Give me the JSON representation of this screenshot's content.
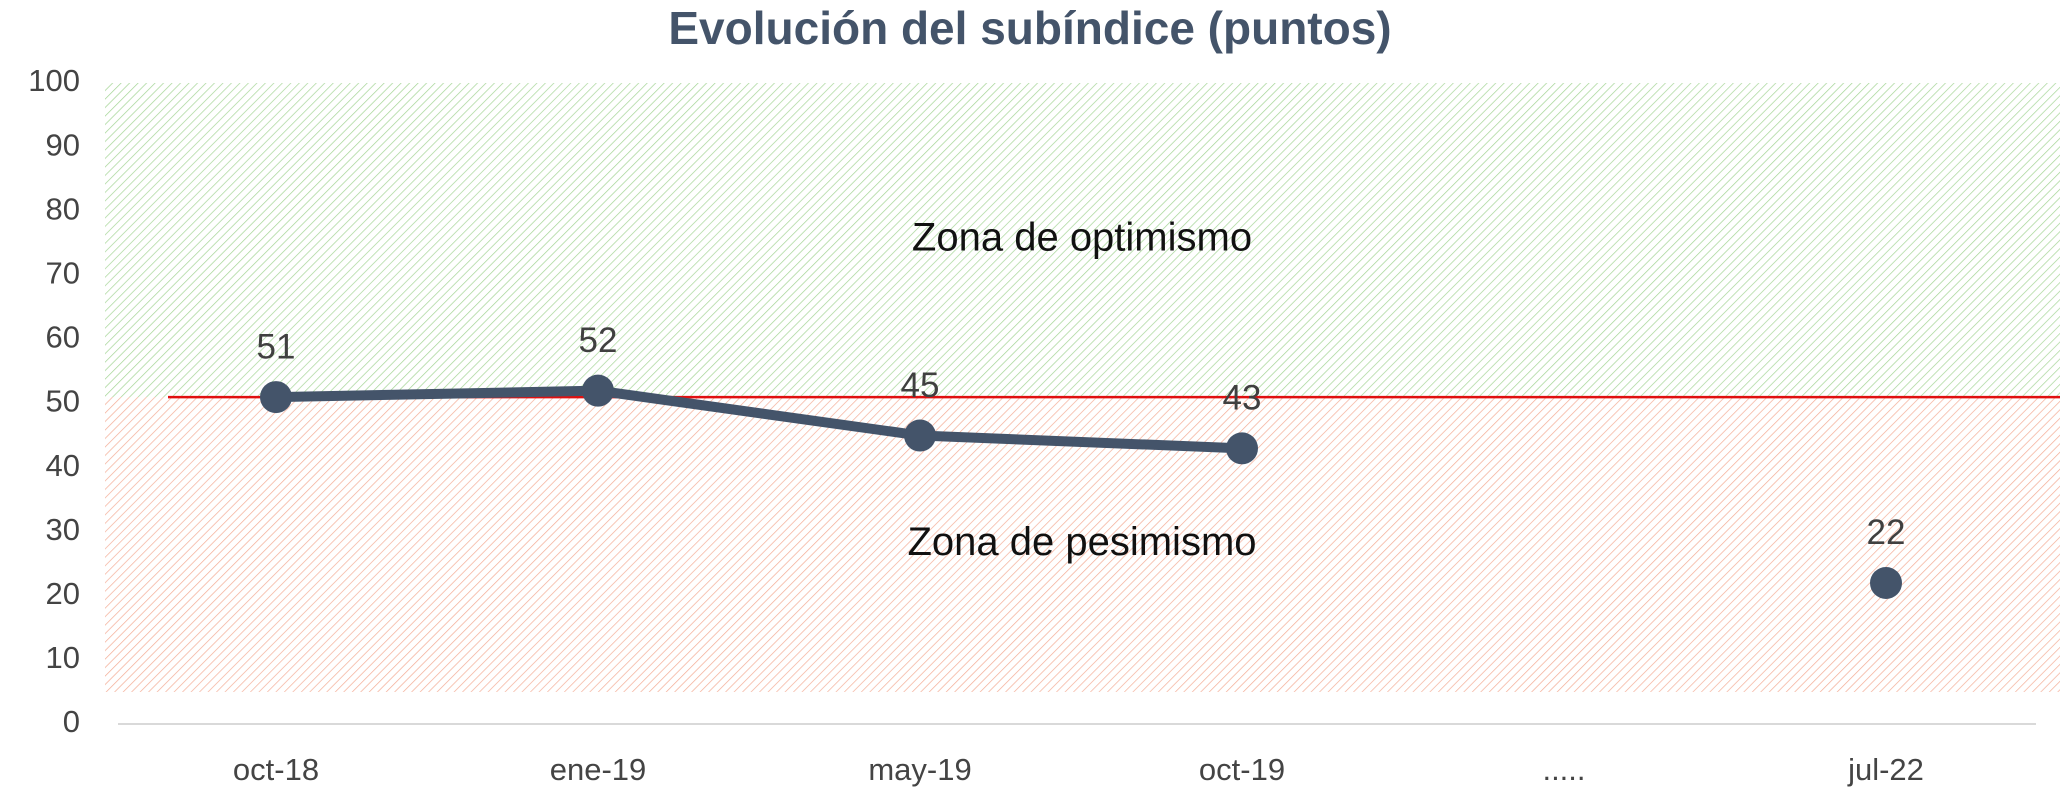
{
  "chart_data": {
    "type": "line",
    "title": "Evolución del subíndice (puntos)",
    "categories": [
      "oct-18",
      "ene-19",
      "may-19",
      "oct-19",
      ".....",
      "jul-22"
    ],
    "series": [
      {
        "color": "#44546a",
        "values": [
          51,
          52,
          45,
          43,
          null,
          22
        ]
      }
    ],
    "ylim": [
      0,
      100
    ],
    "yticks": [
      0,
      10,
      20,
      30,
      40,
      50,
      60,
      70,
      80,
      90,
      100
    ],
    "reference_line": {
      "value": 51,
      "color": "#e01010"
    },
    "zones": [
      {
        "label": "Zona de optimismo",
        "from": 51,
        "to": 100,
        "color": "#7fc46a"
      },
      {
        "label": "Zona de pesimismo",
        "from": 5,
        "to": 51,
        "color": "#f08a6a"
      }
    ],
    "data_labels": true
  }
}
